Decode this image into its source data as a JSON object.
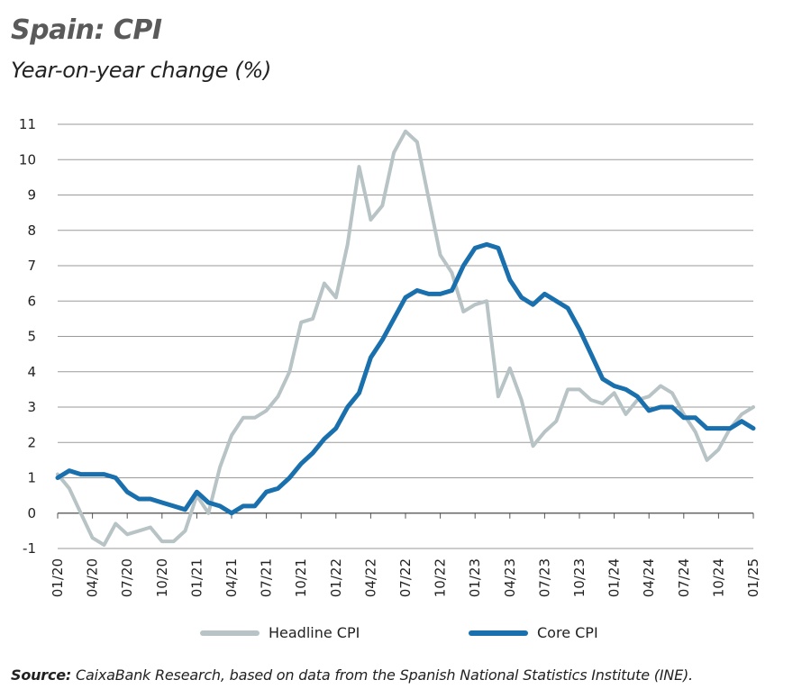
{
  "chart_data": {
    "type": "line",
    "title": "Spain: CPI",
    "subtitle": "Year-on-year change (%)",
    "xlabel": "",
    "ylabel": "",
    "ylim": [
      -1,
      11
    ],
    "yticks": [
      -1,
      0,
      1,
      2,
      3,
      4,
      5,
      6,
      7,
      8,
      9,
      10,
      11
    ],
    "x_tick_labels": [
      "01/20",
      "04/20",
      "07/20",
      "10/20",
      "01/21",
      "04/21",
      "07/21",
      "10/21",
      "01/22",
      "04/22",
      "07/22",
      "10/22",
      "01/23",
      "04/23",
      "07/23",
      "10/23",
      "01/24",
      "04/24",
      "07/24",
      "10/24",
      "01/25"
    ],
    "grid": true,
    "x_start": "01/20",
    "x_end": "01/25",
    "series": [
      {
        "name": "Headline CPI",
        "color": "#b8c3c6",
        "values": [
          1.1,
          0.7,
          0.0,
          -0.7,
          -0.9,
          -0.3,
          -0.6,
          -0.5,
          -0.4,
          -0.8,
          -0.8,
          -0.5,
          0.5,
          0.0,
          1.3,
          2.2,
          2.7,
          2.7,
          2.9,
          3.3,
          4.0,
          5.4,
          5.5,
          6.5,
          6.1,
          7.6,
          9.8,
          8.3,
          8.7,
          10.2,
          10.8,
          10.5,
          8.9,
          7.3,
          6.8,
          5.7,
          5.9,
          6.0,
          3.3,
          4.1,
          3.2,
          1.9,
          2.3,
          2.6,
          3.5,
          3.5,
          3.2,
          3.1,
          3.4,
          2.8,
          3.2,
          3.3,
          3.6,
          3.4,
          2.8,
          2.3,
          1.5,
          1.8,
          2.4,
          2.8,
          3.0
        ]
      },
      {
        "name": "Core CPI",
        "color": "#1a6fad",
        "values": [
          1.0,
          1.2,
          1.1,
          1.1,
          1.1,
          1.0,
          0.6,
          0.4,
          0.4,
          0.3,
          0.2,
          0.1,
          0.6,
          0.3,
          0.2,
          0.0,
          0.2,
          0.2,
          0.6,
          0.7,
          1.0,
          1.4,
          1.7,
          2.1,
          2.4,
          3.0,
          3.4,
          4.4,
          4.9,
          5.5,
          6.1,
          6.3,
          6.2,
          6.2,
          6.3,
          7.0,
          7.5,
          7.6,
          7.5,
          6.6,
          6.1,
          5.9,
          6.2,
          6.0,
          5.8,
          5.2,
          4.5,
          3.8,
          3.6,
          3.5,
          3.3,
          2.9,
          3.0,
          3.0,
          2.7,
          2.7,
          2.4,
          2.4,
          2.4,
          2.6,
          2.4
        ]
      }
    ]
  },
  "legend": {
    "headline_label": "Headline CPI",
    "core_label": "Core CPI"
  },
  "source": {
    "label": "Source:",
    "text": " CaixaBank Research, based on data from the Spanish National Statistics Institute (INE)."
  }
}
